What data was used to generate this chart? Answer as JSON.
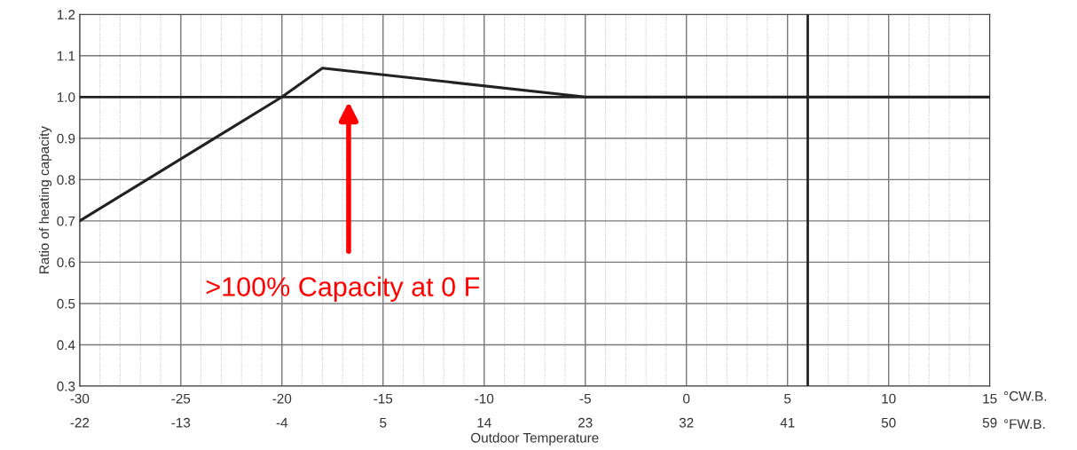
{
  "chart_data": {
    "type": "line",
    "xlabel": "Outdoor Temperature",
    "ylabel": "Ratio of heating capacity",
    "x": [
      -30,
      -20,
      -18,
      -5,
      15
    ],
    "series": [
      {
        "color": "#222222",
        "values": [
          0.7,
          1.0,
          1.07,
          1.0,
          1.0
        ]
      }
    ],
    "xlim": [
      -30,
      15
    ],
    "xticks": [
      -30,
      -25,
      -20,
      -15,
      -10,
      -5,
      0,
      5,
      10,
      15
    ],
    "x2lim": [
      -22,
      59
    ],
    "x2ticks": [
      -22,
      -13,
      -4,
      5,
      14,
      23,
      32,
      41,
      50,
      59
    ],
    "ylim": [
      0.3,
      1.2
    ],
    "yticks": [
      {
        "value": 0.3,
        "label": "0.3"
      },
      {
        "value": 0.4,
        "label": "0.4"
      },
      {
        "value": 0.5,
        "label": "0.5"
      },
      {
        "value": 0.6,
        "label": "0.6"
      },
      {
        "value": 0.7,
        "label": "0.7"
      },
      {
        "value": 0.8,
        "label": "0.8"
      },
      {
        "value": 0.9,
        "label": "0.9"
      },
      {
        "value": 1.0,
        "label": "1.0"
      },
      {
        "value": 1.1,
        "label": "1.1"
      },
      {
        "value": 1.2,
        "label": "1.2"
      }
    ],
    "ref_lines": [
      {
        "axis": "y",
        "value": 1.0,
        "color": "#222222"
      },
      {
        "axis": "x",
        "value": 6,
        "color": "#222222"
      }
    ],
    "grid": true,
    "marker": "none",
    "line_style": "solid",
    "annotations": [
      ">100% Capacity at 0 F",
      "°CW.B.",
      "°FW.B."
    ]
  }
}
